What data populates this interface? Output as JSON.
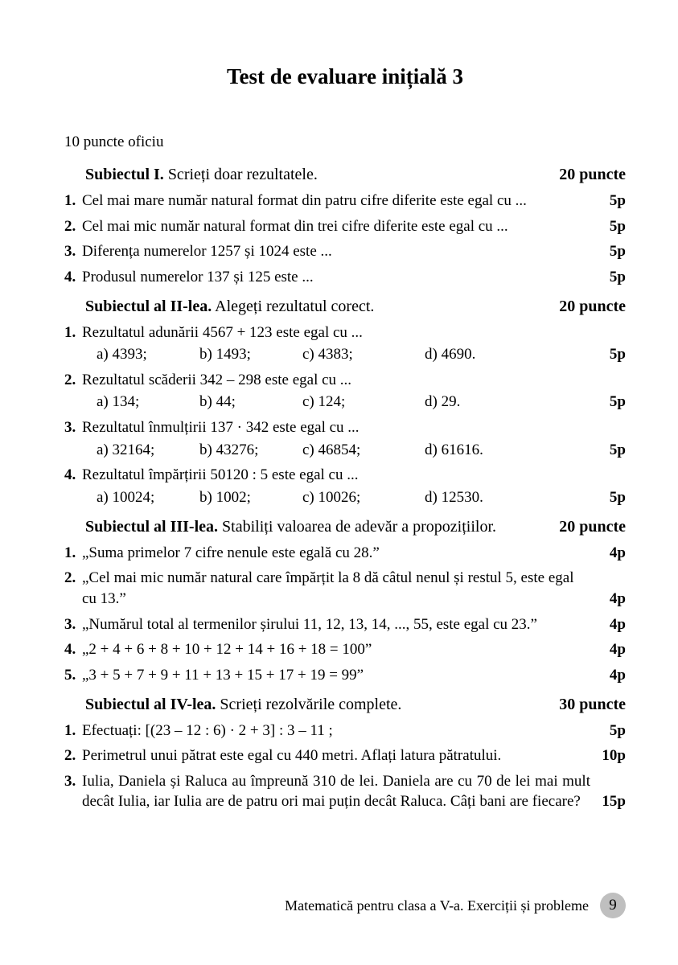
{
  "title": "Test de evaluare inițială 3",
  "oficiu": "10 puncte oficiu",
  "sections": {
    "s1": {
      "label": "Subiectul I.",
      "instr": " Scrieți doar rezultatele.",
      "points": "20 puncte"
    },
    "s2": {
      "label": "Subiectul al II-lea.",
      "instr": " Alegeți rezultatul corect.",
      "points": "20 puncte"
    },
    "s3": {
      "label": "Subiectul al III-lea.",
      "instr": " Stabiliți valoarea de adevăr a propozițiilor.",
      "points": "20 puncte"
    },
    "s4": {
      "label": "Subiectul al IV-lea.",
      "instr": " Scrieți rezolvările complete.",
      "points": "30 puncte"
    }
  },
  "s1q": [
    {
      "n": "1.",
      "t": "Cel mai mare număr natural format din patru cifre diferite este egal cu ...",
      "p": "5p"
    },
    {
      "n": "2.",
      "t": "Cel mai mic număr natural format din trei cifre diferite este egal cu ...",
      "p": "5p"
    },
    {
      "n": "3.",
      "t": "Diferența numerelor 1257 și 1024 este ...",
      "p": "5p"
    },
    {
      "n": "4.",
      "t": "Produsul numerelor 137 și 125 este ...",
      "p": "5p"
    }
  ],
  "s2q": [
    {
      "n": "1.",
      "t": "Rezultatul adunării 4567 + 123 este egal cu ...",
      "a": "a) 4393;",
      "b": "b) 1493;",
      "c": "c) 4383;",
      "d": "d) 4690.",
      "p": "5p"
    },
    {
      "n": "2.",
      "t": "Rezultatul scăderii 342 – 298 este egal cu ...",
      "a": "a) 134;",
      "b": "b) 44;",
      "c": "c) 124;",
      "d": "d) 29.",
      "p": "5p"
    },
    {
      "n": "3.",
      "t": "Rezultatul înmulțirii 137 · 342 este egal cu ...",
      "a": "a) 32164;",
      "b": "b) 43276;",
      "c": "c) 46854;",
      "d": "d) 61616.",
      "p": "5p"
    },
    {
      "n": "4.",
      "t": "Rezultatul împărțirii  50120 : 5 este egal cu ...",
      "a": "a) 10024;",
      "b": "b) 1002;",
      "c": "c) 10026;",
      "d": "d) 12530.",
      "p": "5p"
    }
  ],
  "s3q": [
    {
      "n": "1.",
      "t": "„Suma primelor 7 cifre nenule este egală cu 28.”",
      "p": "4p"
    },
    {
      "n": "2.",
      "t": "„Cel mai mic număr natural care împărțit la 8 dă câtul nenul și restul 5, este egal cu 13.”",
      "p": "4p"
    },
    {
      "n": "3.",
      "t": "„Numărul total al termenilor șirului  11, 12, 13, 14, ..., 55, este egal cu 23.”",
      "p": "4p"
    },
    {
      "n": "4.",
      "t": "„2 + 4 + 6 + 8 + 10 + 12 + 14 + 16 + 18 = 100”",
      "p": "4p"
    },
    {
      "n": "5.",
      "t": "„3 + 5 + 7 + 9 + 11 + 13 + 15 + 17 + 19 = 99”",
      "p": "4p"
    }
  ],
  "s4q": [
    {
      "n": "1.",
      "t": "Efectuați: [(23 – 12 : 6) · 2 + 3] : 3 – 11 ;",
      "p": "5p"
    },
    {
      "n": "2.",
      "t": "Perimetrul unui pătrat este egal cu 440 metri. Aflați latura pătratului.",
      "p": "10p"
    },
    {
      "n": "3.",
      "t": "Iulia, Daniela și Raluca au împreună 310 de lei. Daniela are cu 70 de lei mai mult decât Iulia, iar Iulia are de patru ori mai puțin decât Raluca. Câți bani are fiecare?",
      "p": "15p"
    }
  ],
  "footer": {
    "text": "Matematică pentru clasa a V-a. Exerciții și probleme",
    "page": "9"
  },
  "style": {
    "background": "#ffffff",
    "text_color": "#000000",
    "title_fontsize": 27,
    "body_fontsize": 19,
    "section_fontsize": 20,
    "page_circle_bg": "#bfbfbf",
    "font_family": "Times New Roman"
  }
}
